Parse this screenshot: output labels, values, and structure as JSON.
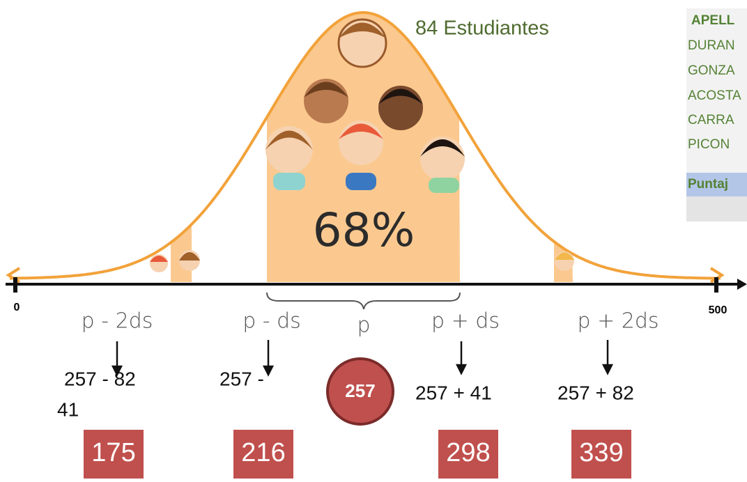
{
  "heading": "84 Estudiantes",
  "center_percent": "68%",
  "axis": {
    "start": 0,
    "end": 500
  },
  "positions": [
    "p - 2ds",
    "p - ds",
    "p",
    "p + ds",
    "p + 2ds"
  ],
  "formulas": {
    "minus_two": "257 - 82",
    "minus_two_wrap": "41",
    "minus_one": "257 -",
    "mean": 257,
    "plus_one": "257 + 41",
    "plus_two": "257 + 82"
  },
  "results": [
    175,
    216,
    298,
    339
  ],
  "table": {
    "header": "APELL",
    "rows": [
      "DURAN",
      "GONZA",
      "ACOSTA",
      "CARRA",
      "PICON"
    ],
    "footer": "Puntaj"
  }
}
